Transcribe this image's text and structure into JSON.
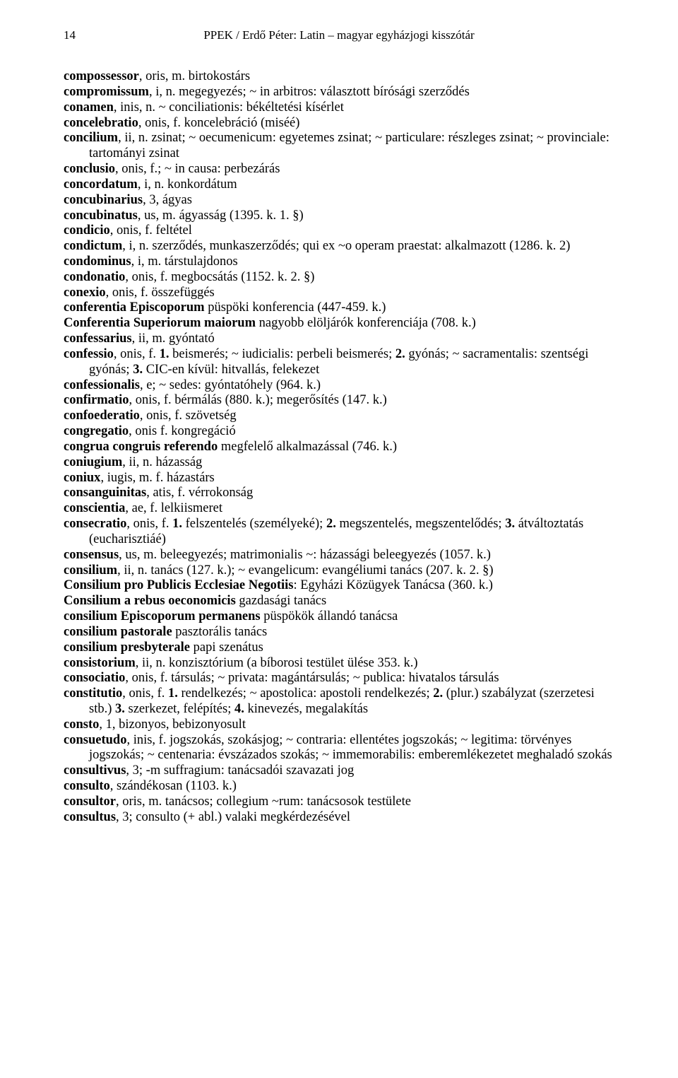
{
  "header": {
    "page_number": "14",
    "running_title": "PPEK / Erdő Péter: Latin – magyar egyházjogi kisszótár"
  },
  "entries": [
    [
      {
        "b": "compossessor"
      },
      ", oris, m. birtokostárs"
    ],
    [
      {
        "b": "compromissum"
      },
      ", i, n. megegyezés; ~ in arbitros: választott bírósági szerződés"
    ],
    [
      {
        "b": "conamen"
      },
      ", inis, n. ~ conciliationis: békéltetési kísérlet"
    ],
    [
      {
        "b": "concelebratio"
      },
      ", onis, f. koncelebráció (miséé)"
    ],
    [
      {
        "b": "concilium"
      },
      ", ii, n. zsinat; ~ oecumenicum: egyetemes zsinat; ~ particulare: részleges zsinat; ~ provinciale: tartományi zsinat"
    ],
    [
      {
        "b": "conclusio"
      },
      ", onis, f.; ~ in causa: perbezárás"
    ],
    [
      {
        "b": "concordatum"
      },
      ", i, n. konkordátum"
    ],
    [
      {
        "b": "concubinarius"
      },
      ", 3, ágyas"
    ],
    [
      {
        "b": "concubinatus"
      },
      ", us, m. ágyasság (1395. k. 1. §)"
    ],
    [
      {
        "b": "condicio"
      },
      ", onis, f. feltétel"
    ],
    [
      {
        "b": "condictum"
      },
      ", i, n. szerződés, munkaszerződés; qui ex ~o operam praestat: alkalmazott (1286. k. 2)"
    ],
    [
      {
        "b": "condominus"
      },
      ", i, m. társtulajdonos"
    ],
    [
      {
        "b": "condonatio"
      },
      ", onis, f. megbocsátás (1152. k. 2. §)"
    ],
    [
      {
        "b": "conexio"
      },
      ", onis, f. összefüggés"
    ],
    [
      {
        "b": "conferentia Episcoporum"
      },
      " püspöki konferencia (447-459. k.)"
    ],
    [
      {
        "b": "Conferentia Superiorum maiorum"
      },
      " nagyobb elöljárók konferenciája (708. k.)"
    ],
    [
      {
        "b": "confessarius"
      },
      ", ii, m. gyóntató"
    ],
    [
      {
        "b": "confessio"
      },
      ", onis, f. ",
      {
        "b": "1."
      },
      " beismerés; ~ iudicialis: perbeli beismerés; ",
      {
        "b": "2."
      },
      " gyónás; ~ sacramentalis: szentségi gyónás; ",
      {
        "b": "3."
      },
      " CIC-en kívül: hitvallás, felekezet"
    ],
    [
      {
        "b": "confessionalis"
      },
      ", e; ~ sedes: gyóntatóhely (964. k.)"
    ],
    [
      {
        "b": "confirmatio"
      },
      ", onis, f. bérmálás (880. k.); megerősítés (147. k.)"
    ],
    [
      {
        "b": "confoederatio"
      },
      ", onis, f. szövetség"
    ],
    [
      {
        "b": "congregatio"
      },
      ", onis f. kongregáció"
    ],
    [
      {
        "b": "congrua congruis referendo"
      },
      " megfelelő alkalmazással (746. k.)"
    ],
    [
      {
        "b": "coniugium"
      },
      ", ii, n. házasság"
    ],
    [
      {
        "b": "coniux"
      },
      ", iugis, m. f. házastárs"
    ],
    [
      {
        "b": "consanguinitas"
      },
      ", atis, f. vérrokonság"
    ],
    [
      {
        "b": "conscientia"
      },
      ", ae, f. lelkiismeret"
    ],
    [
      {
        "b": "consecratio"
      },
      ", onis, f. ",
      {
        "b": "1."
      },
      " felszentelés (személyeké); ",
      {
        "b": "2."
      },
      " megszentelés, megszentelődés; ",
      {
        "b": "3."
      },
      " átváltoztatás (eucharisztiáé)"
    ],
    [
      {
        "b": "consensus"
      },
      ", us, m. beleegyezés; matrimonialis ~: házassági beleegyezés (1057. k.)"
    ],
    [
      {
        "b": "consilium"
      },
      ", ii, n. tanács (127. k.); ~ evangelicum: evangéliumi tanács (207. k. 2. §)"
    ],
    [
      {
        "b": "Consilium pro Publicis Ecclesiae Negotiis"
      },
      ": Egyházi Közügyek Tanácsa (360. k.)"
    ],
    [
      {
        "b": "Consilium a rebus oeconomicis"
      },
      " gazdasági tanács"
    ],
    [
      {
        "b": "consilium Episcoporum permanens"
      },
      " püspökök állandó tanácsa"
    ],
    [
      {
        "b": "consilium pastorale"
      },
      " pasztorális tanács"
    ],
    [
      {
        "b": "consilium presbyterale"
      },
      " papi szenátus"
    ],
    [
      {
        "b": "consistorium"
      },
      ", ii, n. konzisztórium (a bíborosi testület ülése 353. k.)"
    ],
    [
      {
        "b": "consociatio"
      },
      ", onis, f. társulás; ~ privata: magántársulás; ~ publica: hivatalos társulás"
    ],
    [
      {
        "b": "constitutio"
      },
      ", onis, f. ",
      {
        "b": "1."
      },
      " rendelkezés; ~ apostolica: apostoli rendelkezés; ",
      {
        "b": "2."
      },
      " (plur.) szabályzat (szerzetesi stb.) ",
      {
        "b": "3."
      },
      " szerkezet, felépítés; ",
      {
        "b": "4."
      },
      " kinevezés, megalakítás"
    ],
    [
      {
        "b": "consto"
      },
      ", 1, bizonyos, bebizonyosult"
    ],
    [
      {
        "b": "consuetudo"
      },
      ", inis, f. jogszokás, szokásjog; ~ contraria: ellentétes jogszokás; ~ legitima: törvényes jogszokás; ~ centenaria: évszázados szokás; ~ immemorabilis: emberemlékezetet meghaladó szokás"
    ],
    [
      {
        "b": "consultivus"
      },
      ", 3; -m suffragium: tanácsadói szavazati jog"
    ],
    [
      {
        "b": "consulto"
      },
      ", szándékosan (1103. k.)"
    ],
    [
      {
        "b": "consultor"
      },
      ", oris, m. tanácsos; collegium ~rum: tanácsosok testülete"
    ],
    [
      {
        "b": "consultus"
      },
      ", 3; consulto (+ abl.) valaki megkérdezésével"
    ]
  ]
}
